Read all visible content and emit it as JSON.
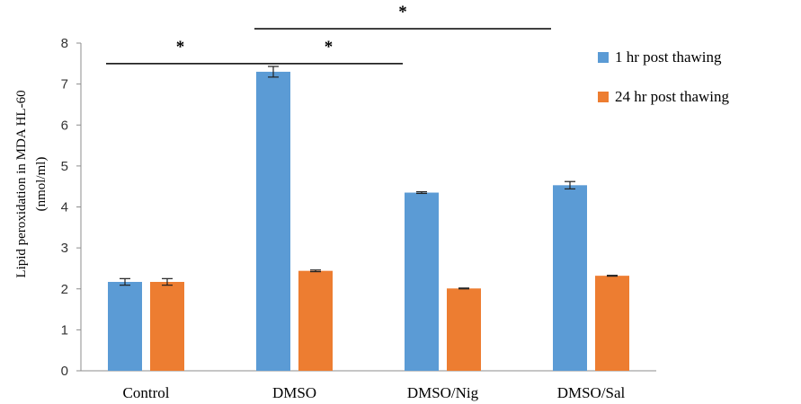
{
  "chart_data": {
    "type": "bar",
    "categories": [
      "Control",
      "DMSO",
      "DMSO/Nig",
      "DMSO/Sal"
    ],
    "series": [
      {
        "name": "1 hr post thawing",
        "color": "#5B9BD5",
        "values": [
          2.17,
          7.3,
          4.35,
          4.53
        ],
        "errors": [
          0.08,
          0.13,
          0.02,
          0.09
        ]
      },
      {
        "name": "24 hr post thawing",
        "color": "#ED7D31",
        "values": [
          2.17,
          2.44,
          2.01,
          2.32
        ],
        "errors": [
          0.08,
          0.02,
          0.01,
          0.01
        ]
      }
    ],
    "ylabel_lines": [
      "Lipid peroxidation in MDA HL-60",
      "(nmol/ml)"
    ],
    "ylim": [
      0,
      8
    ],
    "yticks": [
      0,
      1,
      2,
      3,
      4,
      5,
      6,
      7,
      8
    ],
    "grid": false,
    "legend_position": "right",
    "significance": [
      {
        "label": "*",
        "y_value": 7.5,
        "from_category": 0,
        "to_category": 1
      },
      {
        "label": "*",
        "y_value": 7.5,
        "from_category": 1,
        "to_category": 2
      },
      {
        "label": "*",
        "y_value": 8.35,
        "from_category": 1,
        "to_category": 3
      }
    ]
  }
}
